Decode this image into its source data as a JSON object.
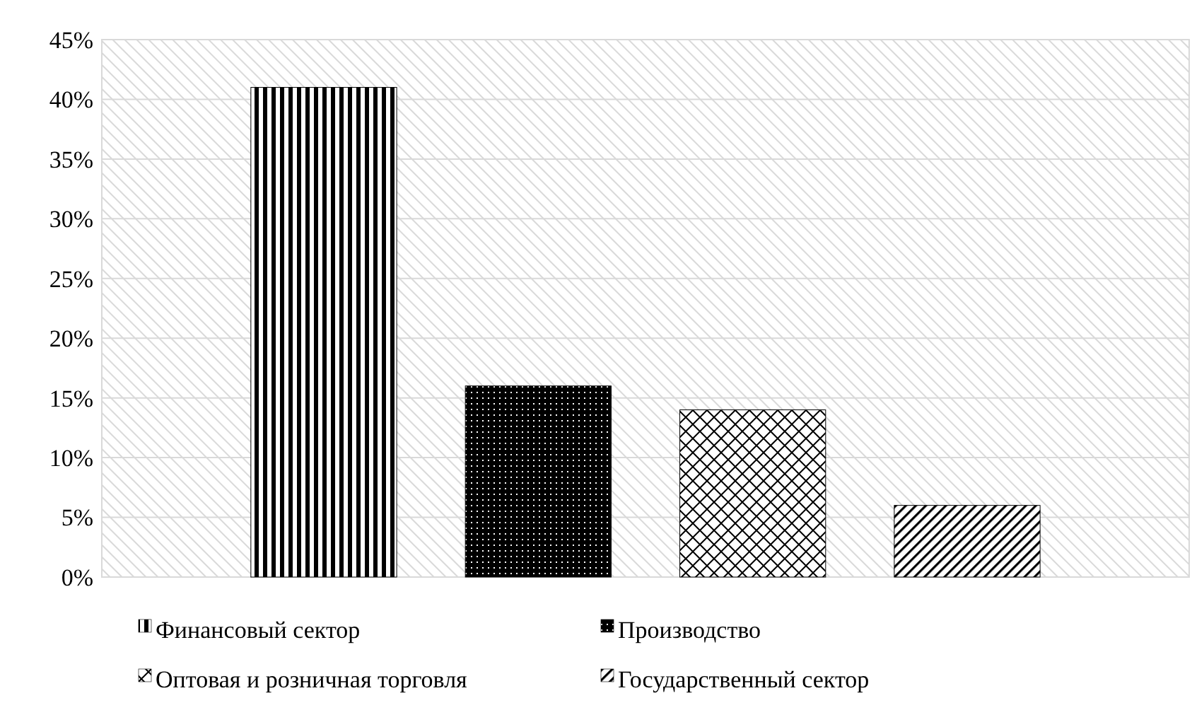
{
  "chart_data": {
    "type": "bar",
    "categories": [
      null
    ],
    "series": [
      {
        "name": "Финансовый сектор",
        "color": "#000000",
        "values": [
          41
        ]
      },
      {
        "name": "Производство",
        "color": "#000000",
        "values": [
          16
        ]
      },
      {
        "name": "Оптовая и розничная торговля",
        "color": "#000000",
        "values": [
          14
        ]
      },
      {
        "name": "Государственный сектор",
        "color": "#000000",
        "values": [
          6
        ]
      }
    ],
    "ylim": [
      0,
      45
    ],
    "yticks": [
      {
        "value": 0,
        "label": "0%"
      },
      {
        "value": 5,
        "label": "5%"
      },
      {
        "value": 10,
        "label": "10%"
      },
      {
        "value": 15,
        "label": "15%"
      },
      {
        "value": 20,
        "label": "20%"
      },
      {
        "value": 25,
        "label": "25%"
      },
      {
        "value": 30,
        "label": "30%"
      },
      {
        "value": 35,
        "label": "35%"
      },
      {
        "value": 40,
        "label": "40%"
      },
      {
        "value": 45,
        "label": "45%"
      }
    ],
    "grid": "y",
    "legend": "bottom"
  }
}
